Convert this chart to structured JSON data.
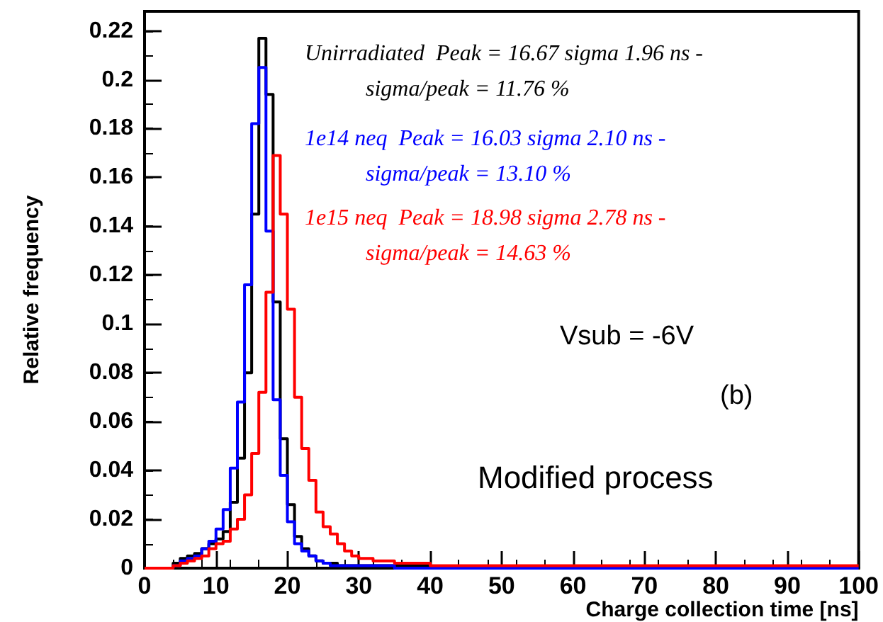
{
  "chart_data": {
    "type": "histogram",
    "xlabel": "Charge collection time [ns]",
    "ylabel": "Relative frequency",
    "bins": [
      0,
      1,
      2,
      3,
      4,
      5,
      6,
      7,
      8,
      9,
      10,
      11,
      12,
      13,
      14,
      15,
      16,
      17,
      18,
      19,
      20,
      21,
      22,
      23,
      24,
      25,
      26,
      27,
      28,
      29,
      30,
      31,
      32,
      33,
      34,
      35,
      36,
      37,
      38,
      39,
      40,
      41,
      42,
      43,
      44,
      45,
      46,
      47,
      48,
      49,
      50,
      51,
      52,
      53,
      54,
      55,
      56,
      57,
      58,
      59,
      60,
      61,
      62,
      63,
      64,
      65,
      66,
      67,
      68,
      69,
      70,
      71,
      72,
      73,
      74,
      75,
      76,
      77,
      78,
      79,
      80,
      81,
      82,
      83,
      84,
      85,
      86,
      87,
      88,
      89,
      90,
      91,
      92,
      93,
      94,
      95,
      96,
      97,
      98,
      99,
      100
    ],
    "series": [
      {
        "color": "#000000",
        "values": [
          0,
          0,
          0,
          0,
          0.002,
          0.004,
          0.005,
          0.006,
          0.008,
          0.01,
          0.012,
          0.015,
          0.027,
          0.045,
          0.08,
          0.145,
          0.217,
          0.194,
          0.109,
          0.053,
          0.026,
          0.013,
          0.008,
          0.005,
          0.003,
          0.002,
          0.002,
          0.001,
          0.001,
          0.001,
          0.001,
          0.001,
          0.001,
          0.001,
          0.001,
          0.001,
          0.001,
          0.001,
          0.001,
          0.001,
          0,
          0,
          0,
          0,
          0,
          0,
          0,
          0,
          0,
          0,
          0,
          0,
          0,
          0,
          0,
          0,
          0,
          0,
          0,
          0,
          0,
          0,
          0,
          0,
          0,
          0,
          0,
          0,
          0,
          0,
          0,
          0,
          0,
          0,
          0,
          0,
          0,
          0,
          0,
          0,
          0,
          0,
          0,
          0,
          0,
          0,
          0,
          0,
          0,
          0,
          0,
          0,
          0,
          0,
          0,
          0,
          0,
          0,
          0,
          0
        ]
      },
      {
        "color": "#0000ff",
        "values": [
          0,
          0,
          0,
          0,
          0.001,
          0.003,
          0.004,
          0.005,
          0.008,
          0.011,
          0.016,
          0.024,
          0.041,
          0.068,
          0.116,
          0.182,
          0.205,
          0.138,
          0.069,
          0.038,
          0.019,
          0.01,
          0.007,
          0.005,
          0.003,
          0.002,
          0.001,
          0.001,
          0.001,
          0.001,
          0.001,
          0.001,
          0.001,
          0.001,
          0.001,
          0,
          0,
          0,
          0,
          0,
          0,
          0,
          0,
          0,
          0,
          0,
          0,
          0,
          0,
          0,
          0,
          0,
          0,
          0,
          0,
          0,
          0,
          0,
          0,
          0,
          0,
          0,
          0,
          0,
          0,
          0,
          0,
          0,
          0,
          0,
          0,
          0,
          0,
          0,
          0,
          0,
          0,
          0,
          0,
          0,
          0,
          0,
          0,
          0,
          0,
          0,
          0,
          0,
          0,
          0,
          0,
          0,
          0,
          0,
          0,
          0,
          0,
          0,
          0,
          0
        ]
      },
      {
        "color": "#ff0000",
        "values": [
          0,
          0,
          0,
          0,
          0.001,
          0.002,
          0.003,
          0.004,
          0.005,
          0.008,
          0.01,
          0.011,
          0.016,
          0.02,
          0.03,
          0.047,
          0.072,
          0.113,
          0.169,
          0.145,
          0.106,
          0.07,
          0.049,
          0.036,
          0.023,
          0.017,
          0.014,
          0.01,
          0.007,
          0.005,
          0.004,
          0.004,
          0.003,
          0.003,
          0.003,
          0.002,
          0.002,
          0.002,
          0.002,
          0.002,
          0.001,
          0.001,
          0.001,
          0.001,
          0.001,
          0.001,
          0.001,
          0.001,
          0.001,
          0.001,
          0.001,
          0.001,
          0.001,
          0.001,
          0.001,
          0.001,
          0.001,
          0.001,
          0.001,
          0.001,
          0.001,
          0.001,
          0.001,
          0.001,
          0.001,
          0.001,
          0.001,
          0.001,
          0.001,
          0.001,
          0.001,
          0.001,
          0.001,
          0.001,
          0.001,
          0.001,
          0.001,
          0.001,
          0.001,
          0.001,
          0.001,
          0.001,
          0.001,
          0.001,
          0.001,
          0.001,
          0.001,
          0.001,
          0.001,
          0.001,
          0.001,
          0.001,
          0.001,
          0.001,
          0.001,
          0.001,
          0.001,
          0.001,
          0.001,
          0.001
        ]
      }
    ],
    "annotations": [
      "Unirradiated  Peak = 16.67 sigma 1.96 ns -\nsigma/peak = 11.76 %",
      "1e14 neq  Peak = 16.03 sigma 2.10 ns -\nsigma/peak = 13.10 %",
      "1e15 neq  Peak = 18.98 sigma 2.78 ns -\nsigma/peak = 14.63 %",
      "Vsub = -6V",
      "(b)",
      "Modified process"
    ],
    "xlim": [
      0,
      100
    ],
    "xticks": [
      0,
      10,
      20,
      30,
      40,
      50,
      60,
      70,
      80,
      90,
      100
    ],
    "ylim": [
      0,
      0.228
    ],
    "yticks": [
      0,
      0.02,
      0.04,
      0.06,
      0.08,
      0.1,
      0.12,
      0.14,
      0.16,
      0.18,
      0.2,
      0.22
    ],
    "grid": false
  }
}
